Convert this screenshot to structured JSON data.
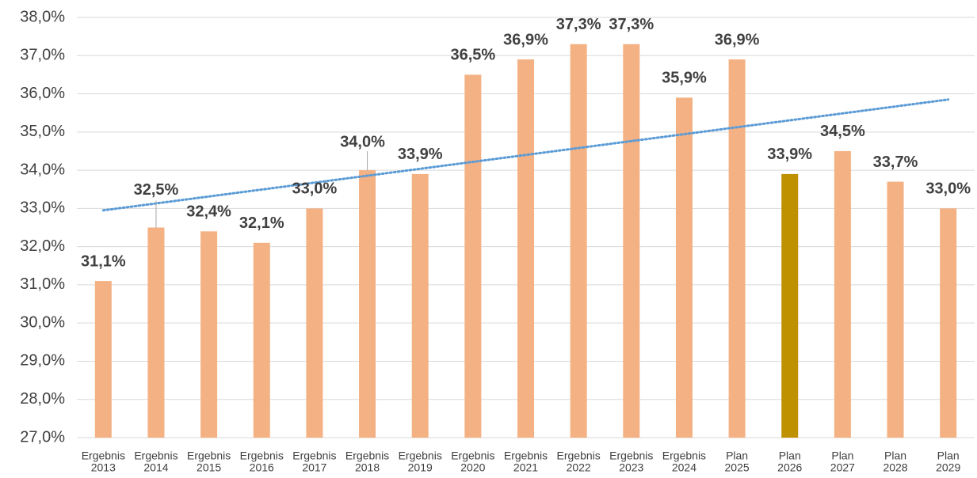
{
  "chart_data": {
    "type": "bar",
    "categories": [
      [
        "Ergebnis",
        "2013"
      ],
      [
        "Ergebnis",
        "2014"
      ],
      [
        "Ergebnis",
        "2015"
      ],
      [
        "Ergebnis",
        "2016"
      ],
      [
        "Ergebnis",
        "2017"
      ],
      [
        "Ergebnis",
        "2018"
      ],
      [
        "Ergebnis",
        "2019"
      ],
      [
        "Ergebnis",
        "2020"
      ],
      [
        "Ergebnis",
        "2021"
      ],
      [
        "Ergebnis",
        "2022"
      ],
      [
        "Ergebnis",
        "2023"
      ],
      [
        "Ergebnis",
        "2024"
      ],
      [
        "Plan",
        "2025"
      ],
      [
        "Plan",
        "2026"
      ],
      [
        "Plan",
        "2027"
      ],
      [
        "Plan",
        "2028"
      ],
      [
        "Plan",
        "2029"
      ]
    ],
    "values": [
      31.1,
      32.5,
      32.4,
      32.1,
      33.0,
      34.0,
      33.9,
      36.5,
      36.9,
      37.3,
      37.3,
      35.9,
      36.9,
      33.9,
      34.5,
      33.7,
      33.0
    ],
    "value_labels": [
      "31,1%",
      "32,5%",
      "32,4%",
      "32,1%",
      "33,0%",
      "34,0%",
      "33,9%",
      "36,5%",
      "36,9%",
      "37,3%",
      "37,3%",
      "35,9%",
      "36,9%",
      "33,9%",
      "34,5%",
      "33,7%",
      "33,0%"
    ],
    "colors": [
      "#f4b183",
      "#f4b183",
      "#f4b183",
      "#f4b183",
      "#f4b183",
      "#f4b183",
      "#f4b183",
      "#f4b183",
      "#f4b183",
      "#f4b183",
      "#f4b183",
      "#f4b183",
      "#f4b183",
      "#bf9000",
      "#f4b183",
      "#f4b183",
      "#f4b183"
    ],
    "trendline": {
      "color": "#5b9bd5",
      "values": [
        32.95,
        35.85
      ]
    },
    "ylim": [
      27,
      38
    ],
    "yticks": [
      {
        "value": 27,
        "label": "27,0%"
      },
      {
        "value": 28,
        "label": "28,0%"
      },
      {
        "value": 29,
        "label": "29,0%"
      },
      {
        "value": 30,
        "label": "30,0%"
      },
      {
        "value": 31,
        "label": "31,0%"
      },
      {
        "value": 32,
        "label": "32,0%"
      },
      {
        "value": 33,
        "label": "33,0%"
      },
      {
        "value": 34,
        "label": "34,0%"
      },
      {
        "value": 35,
        "label": "35,0%"
      },
      {
        "value": 36,
        "label": "36,0%"
      },
      {
        "value": 37,
        "label": "37,0%"
      },
      {
        "value": 38,
        "label": "38,0%"
      }
    ],
    "grid": true
  }
}
